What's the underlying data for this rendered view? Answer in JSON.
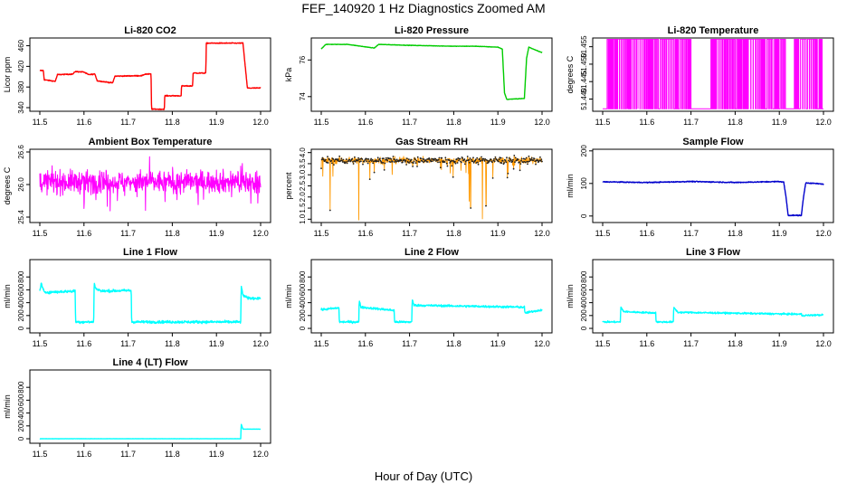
{
  "figure": {
    "title": "FEF_140920  1 Hz Diagnostics Zoomed AM",
    "xlabel": "Hour of Day (UTC)"
  },
  "chart_data": [
    {
      "type": "line",
      "title": "Li-820 CO2",
      "xlabel": "",
      "ylabel": "Licor ppm",
      "xlim": [
        11.5,
        12.0
      ],
      "ylim": [
        333,
        475
      ],
      "xticks": [
        "11.5",
        "11.6",
        "11.7",
        "11.8",
        "11.9",
        "12.0"
      ],
      "yticks": [
        340,
        380,
        420,
        460
      ],
      "ytick_labels": [
        "340",
        "380",
        "420",
        "460"
      ],
      "series": [
        {
          "color": "#ff0000",
          "noise": 1.5,
          "x": [
            11.5,
            11.508,
            11.51,
            11.535,
            11.54,
            11.575,
            11.58,
            11.6,
            11.61,
            11.625,
            11.63,
            11.665,
            11.67,
            11.732,
            11.738,
            11.752,
            11.753,
            11.782,
            11.783,
            11.82,
            11.821,
            11.846,
            11.847,
            11.876,
            11.877,
            11.96,
            11.97,
            12.0
          ],
          "y": [
            412,
            412,
            394,
            391,
            404,
            405,
            410,
            409,
            404,
            405,
            392,
            388,
            401,
            402,
            405,
            405,
            337,
            337,
            363,
            363,
            382,
            382,
            407,
            407,
            465,
            465,
            378,
            378
          ]
        }
      ]
    },
    {
      "type": "line",
      "title": "Li-820 Pressure",
      "xlabel": "",
      "ylabel": "kPa",
      "xlim": [
        11.5,
        12.0
      ],
      "ylim": [
        73.2,
        77.2
      ],
      "xticks": [
        "11.5",
        "11.6",
        "11.7",
        "11.8",
        "11.9",
        "12.0"
      ],
      "yticks": [
        74,
        76
      ],
      "ytick_labels": [
        "74",
        "76"
      ],
      "series": [
        {
          "color": "#00cc00",
          "noise": 0.02,
          "x": [
            11.5,
            11.51,
            11.56,
            11.62,
            11.63,
            11.7,
            11.8,
            11.85,
            11.9,
            11.91,
            11.915,
            11.92,
            11.96,
            11.965,
            11.97,
            11.99,
            12.0
          ],
          "y": [
            76.6,
            76.85,
            76.85,
            76.65,
            76.85,
            76.8,
            76.75,
            76.75,
            76.7,
            76.6,
            74.2,
            73.85,
            73.9,
            76.1,
            76.7,
            76.5,
            76.4
          ]
        }
      ]
    },
    {
      "type": "line",
      "title": "Li-820 Temperature",
      "xlabel": "",
      "ylabel": "degrees C",
      "xlim": [
        11.5,
        12.0
      ],
      "ylim": [
        51.4365,
        51.4575
      ],
      "xticks": [
        "11.5",
        "11.6",
        "11.7",
        "11.8",
        "11.9",
        "12.0"
      ],
      "yticks": [
        51.44,
        51.445,
        51.45,
        51.455
      ],
      "ytick_labels": [
        "51.440",
        "51.445",
        "51.450",
        "51.455"
      ],
      "series": [
        {
          "color": "#ff00ff",
          "digital": true,
          "low": 51.4372,
          "high": 51.4572,
          "high_spans": [
            [
              11.51,
              11.523
            ],
            [
              11.524,
              11.532
            ],
            [
              11.534,
              11.546
            ],
            [
              11.547,
              11.556
            ],
            [
              11.556,
              11.563
            ],
            [
              11.565,
              11.58
            ],
            [
              11.58,
              11.593
            ],
            [
              11.595,
              11.606
            ],
            [
              11.608,
              11.613
            ],
            [
              11.614,
              11.626
            ],
            [
              11.63,
              11.643
            ],
            [
              11.645,
              11.661
            ],
            [
              11.664,
              11.671
            ],
            [
              11.674,
              11.688
            ],
            [
              11.69,
              11.7
            ],
            [
              11.745,
              11.756
            ],
            [
              11.758,
              11.77
            ],
            [
              11.772,
              11.783
            ],
            [
              11.785,
              11.8
            ],
            [
              11.803,
              11.813
            ],
            [
              11.815,
              11.828
            ],
            [
              11.83,
              11.846
            ],
            [
              11.848,
              11.858
            ],
            [
              11.86,
              11.868
            ],
            [
              11.872,
              11.885
            ],
            [
              11.889,
              11.899
            ],
            [
              11.902,
              11.914
            ],
            [
              11.934,
              11.944
            ],
            [
              11.948,
              11.961
            ],
            [
              11.964,
              11.976
            ],
            [
              11.978,
              11.986
            ],
            [
              11.99,
              11.997
            ]
          ]
        }
      ]
    },
    {
      "type": "line",
      "title": "Ambient Box Temperature",
      "xlabel": "",
      "ylabel": "degrees C",
      "xlim": [
        11.5,
        12.0
      ],
      "ylim": [
        25.3,
        26.65
      ],
      "xticks": [
        "11.5",
        "11.6",
        "11.7",
        "11.8",
        "11.9",
        "12.0"
      ],
      "yticks": [
        25.4,
        26.0,
        26.6
      ],
      "ytick_labels": [
        "25.4",
        "26.0",
        "26.6"
      ],
      "series": [
        {
          "color": "#ff00ff",
          "band": true,
          "center": 26.05,
          "spread": 0.22,
          "spikes": 0.55,
          "x": [
            11.5,
            12.0
          ],
          "y": [
            26.05,
            26.05
          ]
        }
      ]
    },
    {
      "type": "line",
      "title": "Gas Stream RH",
      "xlabel": "",
      "ylabel": "percent",
      "xlim": [
        11.5,
        12.0
      ],
      "ylim": [
        0.85,
        4.15
      ],
      "xticks": [
        "11.5",
        "11.6",
        "11.7",
        "11.8",
        "11.9",
        "12.0"
      ],
      "yticks": [
        1.0,
        1.5,
        2.0,
        2.5,
        3.0,
        3.5,
        4.0
      ],
      "ytick_labels": [
        "1.0",
        "1.5",
        "2.0",
        "2.5",
        "3.0",
        "3.5",
        "4.0"
      ],
      "series": [
        {
          "color": "#ff9900",
          "band": true,
          "dotted": true,
          "center": 3.65,
          "spread": 0.17,
          "dips": [
            [
              11.52,
              1.4
            ],
            [
              11.585,
              0.95
            ],
            [
              11.61,
              2.8
            ],
            [
              11.835,
              1.8
            ],
            [
              11.838,
              1.5
            ],
            [
              11.865,
              1.0
            ],
            [
              11.873,
              1.6
            ],
            [
              11.95,
              3.2
            ]
          ],
          "x": [
            11.5,
            12.0
          ],
          "y": [
            3.65,
            3.65
          ]
        }
      ]
    },
    {
      "type": "line",
      "title": "Sample Flow",
      "xlabel": "",
      "ylabel": "ml/min",
      "xlim": [
        11.5,
        12.0
      ],
      "ylim": [
        -20,
        205
      ],
      "xticks": [
        "11.5",
        "11.6",
        "11.7",
        "11.8",
        "11.9",
        "12.0"
      ],
      "yticks": [
        0,
        100,
        200
      ],
      "ytick_labels": [
        "0",
        "100",
        "200"
      ],
      "series": [
        {
          "color": "#0000cc",
          "noise": 2.5,
          "x": [
            11.5,
            11.6,
            11.7,
            11.8,
            11.9,
            11.91,
            11.915,
            11.92,
            11.95,
            11.955,
            11.96,
            12.0
          ],
          "y": [
            105,
            103,
            106,
            103,
            106,
            104,
            60,
            2,
            2,
            60,
            102,
            98
          ]
        }
      ]
    },
    {
      "type": "line",
      "title": "Line 1 Flow",
      "xlabel": "",
      "ylabel": "ml/min",
      "xlim": [
        11.5,
        12.0
      ],
      "ylim": [
        -70,
        1070
      ],
      "xticks": [
        "11.5",
        "11.6",
        "11.7",
        "11.8",
        "11.9",
        "12.0"
      ],
      "yticks": [
        0,
        200,
        400,
        600,
        800
      ],
      "ytick_labels": [
        "0",
        "200",
        "400",
        "600",
        "800"
      ],
      "series": [
        {
          "color": "#00ffff",
          "noise": 35,
          "x": [
            11.5,
            11.503,
            11.51,
            11.58,
            11.581,
            11.622,
            11.623,
            11.627,
            11.64,
            11.707,
            11.708,
            11.955,
            11.956,
            11.96,
            11.97,
            12.0
          ],
          "y": [
            580,
            700,
            560,
            580,
            100,
            100,
            700,
            620,
            580,
            590,
            100,
            100,
            650,
            520,
            470,
            470
          ]
        }
      ]
    },
    {
      "type": "line",
      "title": "Line 2 Flow",
      "xlabel": "",
      "ylabel": "ml/min",
      "xlim": [
        11.5,
        12.0
      ],
      "ylim": [
        -70,
        1070
      ],
      "xticks": [
        "11.5",
        "11.6",
        "11.7",
        "11.8",
        "11.9",
        "12.0"
      ],
      "yticks": [
        0,
        200,
        400,
        600,
        800
      ],
      "ytick_labels": [
        "0",
        "200",
        "400",
        "600",
        "800"
      ],
      "series": [
        {
          "color": "#00ffff",
          "noise": 28,
          "x": [
            11.5,
            11.54,
            11.541,
            11.585,
            11.586,
            11.59,
            11.665,
            11.666,
            11.705,
            11.706,
            11.71,
            11.96,
            11.961,
            12.0
          ],
          "y": [
            290,
            320,
            100,
            100,
            440,
            330,
            280,
            100,
            100,
            450,
            360,
            330,
            240,
            290
          ]
        }
      ]
    },
    {
      "type": "line",
      "title": "Line 3 Flow",
      "xlabel": "",
      "ylabel": "ml/min",
      "xlim": [
        11.5,
        12.0
      ],
      "ylim": [
        -70,
        1070
      ],
      "xticks": [
        "11.5",
        "11.6",
        "11.7",
        "11.8",
        "11.9",
        "12.0"
      ],
      "yticks": [
        0,
        200,
        400,
        600,
        800
      ],
      "ytick_labels": [
        "0",
        "200",
        "400",
        "600",
        "800"
      ],
      "series": [
        {
          "color": "#00ffff",
          "noise": 22,
          "x": [
            11.5,
            11.505,
            11.54,
            11.541,
            11.548,
            11.62,
            11.621,
            11.66,
            11.661,
            11.67,
            11.95,
            11.951,
            12.0
          ],
          "y": [
            100,
            100,
            100,
            330,
            260,
            240,
            100,
            100,
            330,
            250,
            220,
            200,
            210
          ]
        }
      ]
    },
    {
      "type": "line",
      "title": "Line 4 (LT) Flow",
      "xlabel": "",
      "ylabel": "ml/min",
      "xlim": [
        11.5,
        12.0
      ],
      "ylim": [
        -70,
        1070
      ],
      "xticks": [
        "11.5",
        "11.6",
        "11.7",
        "11.8",
        "11.9",
        "12.0"
      ],
      "yticks": [
        0,
        200,
        400,
        600,
        800
      ],
      "ytick_labels": [
        "0",
        "200",
        "400",
        "600",
        "800"
      ],
      "series": [
        {
          "color": "#00ffff",
          "noise": 3,
          "x": [
            11.5,
            11.955,
            11.956,
            11.96,
            12.0
          ],
          "y": [
            0,
            0,
            230,
            150,
            150
          ]
        }
      ]
    }
  ]
}
